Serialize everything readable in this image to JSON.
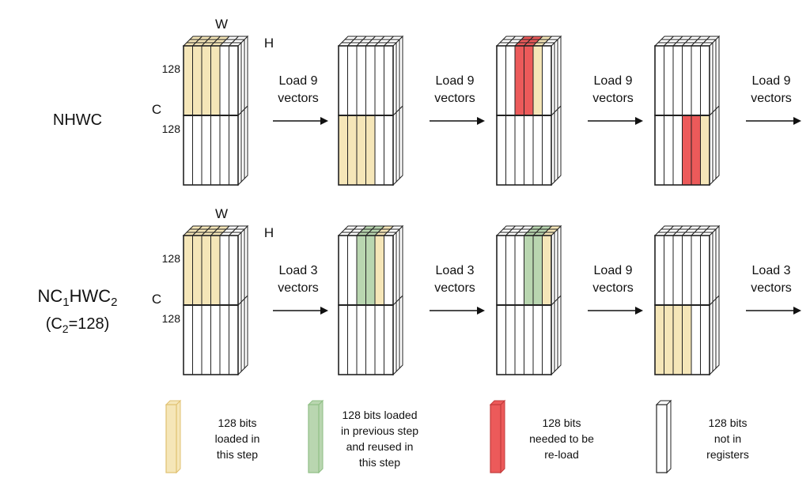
{
  "rows": [
    {
      "id": "nhwc",
      "layout_label": "NHWC",
      "layout_label_line2": "",
      "axis_labels": {
        "w": "W",
        "h": "H",
        "c": "C",
        "top_block": "128",
        "bottom_block": "128"
      },
      "arrows": [
        {
          "line1": "Load 9",
          "line2": "vectors"
        },
        {
          "line1": "Load 9",
          "line2": "vectors"
        },
        {
          "line1": "Load 9",
          "line2": "vectors"
        },
        {
          "line1": "Load 9",
          "line2": "vectors"
        }
      ]
    },
    {
      "id": "nc1hwc2",
      "layout_label": "NC1HWC2",
      "layout_label_line2": "(C2=128)",
      "axis_labels": {
        "w": "W",
        "h": "H",
        "c": "C",
        "top_block": "128",
        "bottom_block": "128"
      },
      "arrows": [
        {
          "line1": "Load 3",
          "line2": "vectors"
        },
        {
          "line1": "Load 3",
          "line2": "vectors"
        },
        {
          "line1": "Load 9",
          "line2": "vectors"
        },
        {
          "line1": "Load 3",
          "line2": "vectors"
        }
      ]
    }
  ],
  "legend": [
    {
      "kind": "loaded",
      "color": "#f5e6b8",
      "stroke": "#e0c070",
      "lines": [
        "128 bits",
        "loaded in",
        "this step"
      ]
    },
    {
      "kind": "reused",
      "color": "#b9d6b0",
      "stroke": "#8fbf85",
      "lines": [
        "128 bits loaded",
        "in previous step",
        "and reused in",
        "this step"
      ]
    },
    {
      "kind": "reload",
      "color": "#ec5a5a",
      "stroke": "#c23b3b",
      "lines": [
        "128 bits",
        "needed to be",
        "re-load"
      ]
    },
    {
      "kind": "empty",
      "color": "#ffffff",
      "stroke": "#222222",
      "lines": [
        "128 bits",
        "not in",
        "registers"
      ]
    }
  ],
  "colors": {
    "loaded": "#f5e6b8",
    "reused": "#b9d6b0",
    "reload": "#ec5a5a",
    "grid": "#222222"
  }
}
